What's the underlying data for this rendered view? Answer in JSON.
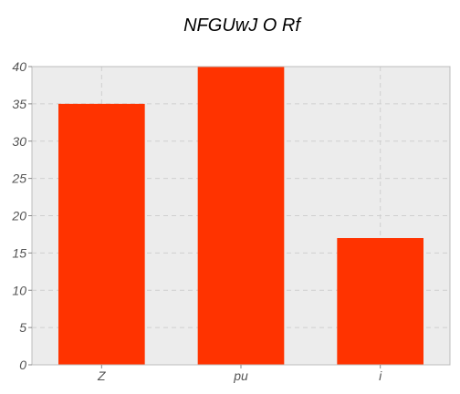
{
  "chart_data": {
    "type": "bar",
    "title": "NFGUwJ O Rf",
    "xlabel": "",
    "ylabel": "",
    "categories": [
      "Z",
      "pu",
      "i"
    ],
    "values": [
      35,
      40,
      17
    ],
    "ylim": [
      0,
      40
    ],
    "yticks": [
      0,
      5,
      10,
      15,
      20,
      25,
      30,
      35,
      40
    ],
    "grid": true,
    "legend": "none",
    "colors": {
      "bar": "#ff3300",
      "plot_background": "#ececec",
      "axes_edge": "#bcbcbc"
    }
  }
}
